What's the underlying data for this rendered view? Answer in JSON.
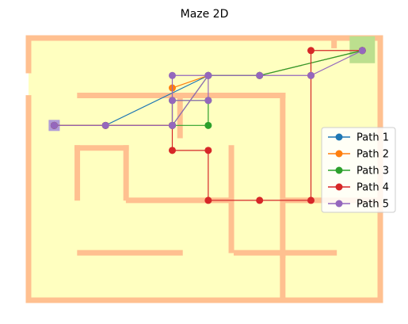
{
  "chart_data": {
    "type": "line",
    "title": "Maze 2D",
    "xlabel": "",
    "ylabel": "",
    "xlim": [
      0,
      13.7
    ],
    "ylim": [
      0,
      10.5
    ],
    "grid": false,
    "axes_visible": false,
    "legend_position": "center-right",
    "colors": {
      "floor": "#FFFFC0",
      "wall": "#FFC090",
      "start_marker": "#B09CD8",
      "goal_marker": "#BCDF8E"
    },
    "maze": {
      "start": [
        1,
        7
      ],
      "goal": [
        13,
        10
      ],
      "walls": [
        [
          [
            0,
            0
          ],
          [
            13.7,
            0
          ]
        ],
        [
          [
            0,
            10.5
          ],
          [
            13.7,
            10.5
          ]
        ],
        [
          [
            0,
            0
          ],
          [
            0,
            8.1
          ]
        ],
        [
          [
            0,
            9.2
          ],
          [
            0,
            10.5
          ]
        ],
        [
          [
            13.7,
            0
          ],
          [
            13.7,
            10.5
          ]
        ],
        [
          [
            11.9,
            10.2
          ],
          [
            11.9,
            10.5
          ]
        ],
        [
          [
            2,
            8.2
          ],
          [
            9.9,
            8.2
          ]
        ],
        [
          [
            5.9,
            6.6
          ],
          [
            5.9,
            8.2
          ]
        ],
        [
          [
            9.9,
            1.8
          ],
          [
            9.9,
            8.2
          ]
        ],
        [
          [
            1.9,
            6.1
          ],
          [
            3.8,
            6.1
          ]
        ],
        [
          [
            1.9,
            4.1
          ],
          [
            1.9,
            6.1
          ]
        ],
        [
          [
            3.8,
            4.1
          ],
          [
            3.8,
            6.1
          ]
        ],
        [
          [
            3.9,
            4.0
          ],
          [
            7.9,
            4.0
          ]
        ],
        [
          [
            7.9,
            2.0
          ],
          [
            7.9,
            6.1
          ]
        ],
        [
          [
            10.0,
            4.0
          ],
          [
            13.6,
            4.0
          ]
        ],
        [
          [
            2,
            1.9
          ],
          [
            5.9,
            1.9
          ]
        ],
        [
          [
            8.1,
            1.9
          ],
          [
            11.9,
            1.9
          ]
        ],
        [
          [
            9.9,
            0
          ],
          [
            9.9,
            1.9
          ]
        ]
      ]
    },
    "series": [
      {
        "name": "Path 1",
        "color": "#1f77b4",
        "x": [
          1,
          3,
          7,
          9,
          13
        ],
        "y": [
          7,
          7,
          9,
          9,
          10
        ]
      },
      {
        "name": "Path 2",
        "color": "#ff7f0e",
        "x": [
          1,
          3,
          5.6,
          5.6,
          7,
          9,
          13
        ],
        "y": [
          7,
          7,
          7,
          8.5,
          9,
          9,
          10
        ]
      },
      {
        "name": "Path 3",
        "color": "#2ca02c",
        "x": [
          1,
          3,
          5.6,
          7,
          7,
          5.6,
          5.6,
          7,
          9,
          13
        ],
        "y": [
          7,
          7,
          7,
          7,
          8,
          8,
          7,
          9,
          9,
          10
        ]
      },
      {
        "name": "Path 4",
        "color": "#d62728",
        "x": [
          1,
          3,
          5.6,
          5.6,
          7,
          7,
          9,
          11,
          11,
          11,
          13
        ],
        "y": [
          7,
          7,
          7,
          6,
          6,
          4,
          4,
          4,
          9,
          10,
          10
        ]
      },
      {
        "name": "Path 5",
        "color": "#9467bd",
        "x": [
          1,
          3,
          5.6,
          5.6,
          7,
          7,
          5.6,
          5.6,
          7,
          9,
          11,
          13
        ],
        "y": [
          7,
          7,
          7,
          8,
          8,
          9,
          9,
          7,
          9,
          9,
          9,
          10
        ]
      }
    ]
  }
}
